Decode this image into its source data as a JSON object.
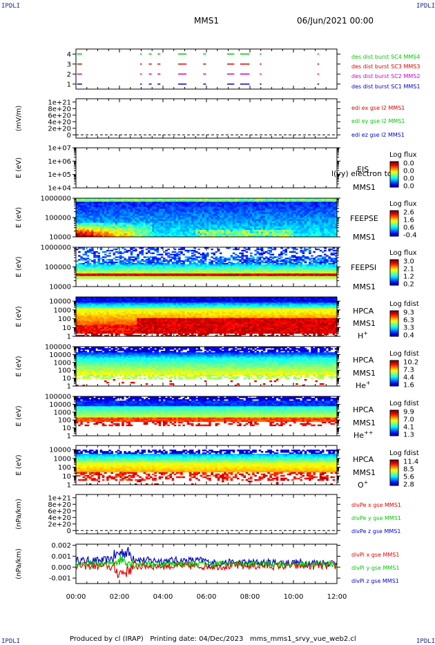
{
  "corner_label": "IPDLI",
  "header": {
    "spacecraft": "MMS1",
    "date_time": "06/Jun/2021 00:00"
  },
  "footer": {
    "text": "Produced by cl (IRAP)   Printing date: 04/Dec/2023   mms_mms1_srvy_vue_web2.cl"
  },
  "colors": {
    "red": "#dd0000",
    "green": "#00c800",
    "blue": "#0000cc",
    "magenta": "#cc00cc"
  },
  "chart_data": [
    {
      "id": "burst",
      "type": "scatter",
      "ylim": [
        0.5,
        4.5
      ],
      "yticks": [
        "1",
        "2",
        "3",
        "4"
      ],
      "ytick_values": [
        1,
        2,
        3,
        4
      ],
      "series": [
        {
          "name": "des dist burst SC1 MMS1",
          "color": "#0000cc",
          "y": 1,
          "intervals": [
            [
              0.05,
              0.25
            ],
            [
              2.95,
              3.0
            ],
            [
              3.35,
              3.45
            ],
            [
              3.75,
              3.85
            ],
            [
              4.7,
              5.05
            ],
            [
              5.85,
              5.95
            ],
            [
              6.95,
              7.25
            ],
            [
              7.55,
              7.95
            ],
            [
              8.45,
              8.5
            ],
            [
              11.1,
              11.15
            ]
          ]
        },
        {
          "name": "des dist burst SC2 MMS2",
          "color": "#cc00cc",
          "y": 2,
          "intervals": [
            [
              0.05,
              0.25
            ],
            [
              2.95,
              3.0
            ],
            [
              3.35,
              3.45
            ],
            [
              3.75,
              3.85
            ],
            [
              4.7,
              5.05
            ],
            [
              5.85,
              5.95
            ],
            [
              6.95,
              7.25
            ],
            [
              7.55,
              7.95
            ],
            [
              8.45,
              8.5
            ],
            [
              11.1,
              11.15
            ]
          ]
        },
        {
          "name": "des dist burst SC3 MMS3",
          "color": "#dd0000",
          "y": 3,
          "intervals": [
            [
              0.05,
              0.25
            ],
            [
              2.95,
              3.0
            ],
            [
              3.35,
              3.45
            ],
            [
              3.75,
              3.85
            ],
            [
              4.7,
              5.05
            ],
            [
              5.85,
              5.95
            ],
            [
              6.95,
              7.25
            ],
            [
              7.55,
              7.95
            ],
            [
              8.45,
              8.5
            ],
            [
              11.1,
              11.15
            ]
          ]
        },
        {
          "name": "des dist burst SC4 MMS4",
          "color": "#00c800",
          "y": 4,
          "intervals": [
            [
              0.05,
              0.25
            ],
            [
              2.95,
              3.0
            ],
            [
              3.35,
              3.45
            ],
            [
              3.75,
              3.85
            ],
            [
              4.7,
              5.05
            ],
            [
              5.85,
              5.95
            ],
            [
              6.95,
              7.25
            ],
            [
              7.55,
              7.95
            ],
            [
              8.45,
              8.5
            ],
            [
              11.1,
              11.15
            ]
          ]
        }
      ]
    },
    {
      "id": "edi",
      "type": "line",
      "ylabel": "(mV/m)",
      "ylim": [
        -1e+20,
        1.1e+21
      ],
      "yticks": [
        "1e+21",
        "8e+20",
        "6e+20",
        "4e+20",
        "2e+20",
        "0"
      ],
      "ytick_values": [
        1e+21,
        8e+20,
        6e+20,
        4e+20,
        2e+20,
        0
      ],
      "dashed_zero": true,
      "series": [
        {
          "name": "edi ex gse l2 MMS1",
          "color": "#dd0000"
        },
        {
          "name": "edi ey gse l2 MMS1",
          "color": "#00c800"
        },
        {
          "name": "edi ez gse l2 MMS1",
          "color": "#0000cc"
        }
      ]
    },
    {
      "id": "eis",
      "type": "heatmap",
      "ylabel": "E (eV)",
      "yscale": "log",
      "ylim": [
        10000,
        10000000
      ],
      "yticks": [
        "1e+07",
        "1e+06",
        "1e+05",
        "1e+04"
      ],
      "ytick_values": [
        10000000.0,
        1000000.0,
        100000.0,
        10000.0
      ],
      "instrument": "EIS",
      "instrument_overlap": "l(vy) electron to",
      "spacecraft": "MMS1",
      "colorbar": {
        "title": "Log flux",
        "ticks": [
          "0.0",
          "0.0",
          "0.0",
          "0.0"
        ]
      },
      "empty": true
    },
    {
      "id": "feepse",
      "type": "heatmap",
      "ylabel": "E (eV)",
      "yscale": "log",
      "ylim": [
        10000,
        1000000
      ],
      "yticks": [
        "1000000",
        "100000",
        "10000"
      ],
      "ytick_values": [
        1000000.0,
        100000.0,
        10000.0
      ],
      "instrument": "FEEPSE",
      "spacecraft": "MMS1",
      "colorbar": {
        "title": "Log flux",
        "ticks": [
          "2.6",
          "1.6",
          "0.6",
          "-0.4"
        ]
      }
    },
    {
      "id": "feepsi",
      "type": "heatmap",
      "ylabel": "E (eV)",
      "yscale": "log",
      "ylim": [
        10000,
        1000000
      ],
      "yticks": [
        "1000000",
        "100000",
        "10000"
      ],
      "ytick_values": [
        1000000.0,
        100000.0,
        10000.0
      ],
      "instrument": "FEEPSI",
      "spacecraft": "MMS1",
      "colorbar": {
        "title": "Log flux",
        "ticks": [
          "3.0",
          "2.1",
          "1.2",
          "0.2"
        ]
      }
    },
    {
      "id": "hpca_h",
      "type": "heatmap",
      "ylabel": "E (eV)",
      "yscale": "log",
      "ylim": [
        1,
        30000
      ],
      "yticks": [
        "10000",
        "1000",
        "100",
        "10",
        "1"
      ],
      "ytick_values": [
        10000,
        1000,
        100,
        10,
        1
      ],
      "instrument": "HPCA",
      "spacecraft": "MMS1",
      "species": "H",
      "species_charge": "+",
      "colorbar": {
        "title": "Log fdist",
        "ticks": [
          "9.3",
          "6.3",
          "3.3",
          "0.4"
        ]
      }
    },
    {
      "id": "hpca_he",
      "type": "heatmap",
      "ylabel": "E (eV)",
      "yscale": "log",
      "ylim": [
        1,
        100000
      ],
      "yticks": [
        "100000",
        "10000",
        "1000",
        "100",
        "10",
        "1"
      ],
      "ytick_values": [
        100000,
        10000,
        1000,
        100,
        10,
        1
      ],
      "instrument": "HPCA",
      "spacecraft": "MMS1",
      "species": "He",
      "species_charge": "+",
      "colorbar": {
        "title": "Log fdist",
        "ticks": [
          "10.2",
          "7.3",
          "4.4",
          "1.6"
        ]
      }
    },
    {
      "id": "hpca_hepp",
      "type": "heatmap",
      "ylabel": "E (eV)",
      "yscale": "log",
      "ylim": [
        1,
        100000
      ],
      "yticks": [
        "100000",
        "10000",
        "1000",
        "100",
        "10",
        "1"
      ],
      "ytick_values": [
        100000,
        10000,
        1000,
        100,
        10,
        1
      ],
      "instrument": "HPCA",
      "spacecraft": "MMS1",
      "species": "He",
      "species_charge": "++",
      "colorbar": {
        "title": "Log fdist",
        "ticks": [
          "9.9",
          "7.0",
          "4.1",
          "1.3"
        ]
      }
    },
    {
      "id": "hpca_o",
      "type": "heatmap",
      "ylabel": "E (eV)",
      "yscale": "log",
      "ylim": [
        1,
        30000
      ],
      "yticks": [
        "10000",
        "1000",
        "100",
        "10",
        "1"
      ],
      "ytick_values": [
        10000,
        1000,
        100,
        10,
        1
      ],
      "instrument": "HPCA",
      "spacecraft": "MMS1",
      "species": "O",
      "species_charge": "+",
      "colorbar": {
        "title": "Log fdist",
        "ticks": [
          "11.4",
          "8.5",
          "5.6",
          "2.8"
        ]
      }
    },
    {
      "id": "divpe",
      "type": "line",
      "ylabel": "(nPa/km)",
      "ylim": [
        -1e+20,
        1.1e+21
      ],
      "yticks": [
        "1e+21",
        "8e+20",
        "6e+20",
        "4e+20",
        "2e+20",
        "0"
      ],
      "ytick_values": [
        1e+21,
        8e+20,
        6e+20,
        4e+20,
        2e+20,
        0
      ],
      "dashed_zero": true,
      "series": [
        {
          "name": "divPe x gse MMS1",
          "color": "#dd0000"
        },
        {
          "name": "divPe y gse MMS1",
          "color": "#00c800"
        },
        {
          "name": "divPe z gse MMS1",
          "color": "#0000cc"
        }
      ]
    },
    {
      "id": "divpi",
      "type": "line",
      "ylabel": "(nPa/km)",
      "ylim": [
        -0.0015,
        0.0021
      ],
      "yticks": [
        "0.002",
        "0.001",
        "0.000",
        "-0.001"
      ],
      "ytick_values": [
        0.002,
        0.001,
        0.0,
        -0.001
      ],
      "series": [
        {
          "name": "divPi x gse MMS1",
          "color": "#dd0000"
        },
        {
          "name": "divPi y gse MMS1",
          "color": "#00c800"
        },
        {
          "name": "divPi z gse MMS1",
          "color": "#0000cc"
        }
      ]
    }
  ],
  "time_axis": {
    "xlim_hours": [
      0,
      12
    ],
    "labels": [
      "00:00",
      "02:00",
      "04:00",
      "06:00",
      "08:00",
      "10:00",
      "12:00"
    ],
    "values": [
      0,
      2,
      4,
      6,
      8,
      10,
      12
    ]
  }
}
